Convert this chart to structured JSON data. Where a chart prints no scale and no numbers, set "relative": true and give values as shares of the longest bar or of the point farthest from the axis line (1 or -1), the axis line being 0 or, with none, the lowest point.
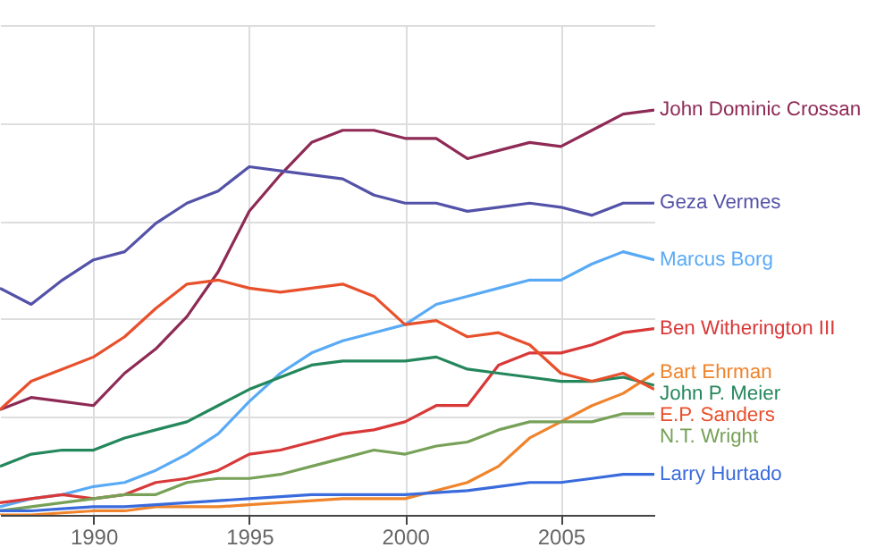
{
  "chart_data": {
    "type": "line",
    "relative": true,
    "grid": true,
    "x": [
      1987,
      1988,
      1989,
      1990,
      1991,
      1992,
      1993,
      1994,
      1995,
      1996,
      1997,
      1998,
      1999,
      2000,
      2001,
      2002,
      2003,
      2004,
      2005,
      2006,
      2007,
      2008
    ],
    "xlim": [
      1987,
      2008
    ],
    "xticks": [
      1990,
      1995,
      2000,
      2005
    ],
    "series": [
      {
        "name": "John Dominic Crossan",
        "color": "#8e2a55",
        "values": [
          0.26,
          0.29,
          0.28,
          0.27,
          0.35,
          0.41,
          0.49,
          0.6,
          0.75,
          0.84,
          0.92,
          0.95,
          0.95,
          0.93,
          0.93,
          0.88,
          0.9,
          0.92,
          0.91,
          0.95,
          0.99,
          1
        ]
      },
      {
        "name": "Geza Vermes",
        "color": "#5352a8",
        "values": [
          0.56,
          0.52,
          0.58,
          0.63,
          0.65,
          0.72,
          0.77,
          0.8,
          0.86,
          0.85,
          0.84,
          0.83,
          0.79,
          0.77,
          0.77,
          0.75,
          0.76,
          0.77,
          0.76,
          0.74,
          0.77,
          0.77
        ]
      },
      {
        "name": "Marcus Borg",
        "color": "#59aaf5",
        "values": [
          0.02,
          0.04,
          0.05,
          0.07,
          0.08,
          0.11,
          0.15,
          0.2,
          0.28,
          0.35,
          0.4,
          0.43,
          0.45,
          0.47,
          0.52,
          0.54,
          0.56,
          0.58,
          0.58,
          0.62,
          0.65,
          0.63
        ]
      },
      {
        "name": "Ben Witherington III",
        "color": "#d93838",
        "values": [
          0.03,
          0.04,
          0.05,
          0.04,
          0.05,
          0.08,
          0.09,
          0.11,
          0.15,
          0.16,
          0.18,
          0.2,
          0.21,
          0.23,
          0.27,
          0.27,
          0.37,
          0.4,
          0.4,
          0.42,
          0.45,
          0.46
        ]
      },
      {
        "name": "Bart Ehrman",
        "color": "#ef842c",
        "values": [
          0,
          0,
          0.005,
          0.01,
          0.01,
          0.02,
          0.02,
          0.02,
          0.025,
          0.03,
          0.035,
          0.04,
          0.04,
          0.04,
          0.06,
          0.08,
          0.12,
          0.19,
          0.23,
          0.27,
          0.3,
          0.35
        ]
      },
      {
        "name": "John P. Meier",
        "color": "#24875c",
        "values": [
          0.12,
          0.15,
          0.16,
          0.16,
          0.19,
          0.21,
          0.23,
          0.27,
          0.31,
          0.34,
          0.37,
          0.38,
          0.38,
          0.38,
          0.39,
          0.36,
          0.35,
          0.34,
          0.33,
          0.33,
          0.34,
          0.32
        ]
      },
      {
        "name": "E.P. Sanders",
        "color": "#e8502c",
        "values": [
          0.26,
          0.33,
          0.36,
          0.39,
          0.44,
          0.51,
          0.57,
          0.58,
          0.56,
          0.55,
          0.56,
          0.57,
          0.54,
          0.47,
          0.48,
          0.44,
          0.45,
          0.42,
          0.35,
          0.33,
          0.35,
          0.31
        ]
      },
      {
        "name": "N.T. Wright",
        "color": "#76a157",
        "values": [
          0.01,
          0.02,
          0.03,
          0.04,
          0.05,
          0.05,
          0.08,
          0.09,
          0.09,
          0.1,
          0.12,
          0.14,
          0.16,
          0.15,
          0.17,
          0.18,
          0.21,
          0.23,
          0.23,
          0.23,
          0.25,
          0.25
        ]
      },
      {
        "name": "Larry Hurtado",
        "color": "#3a6bdc",
        "values": [
          0.01,
          0.01,
          0.015,
          0.02,
          0.02,
          0.025,
          0.03,
          0.035,
          0.04,
          0.045,
          0.05,
          0.05,
          0.05,
          0.05,
          0.055,
          0.06,
          0.07,
          0.08,
          0.08,
          0.09,
          0.1,
          0.1
        ]
      }
    ]
  }
}
